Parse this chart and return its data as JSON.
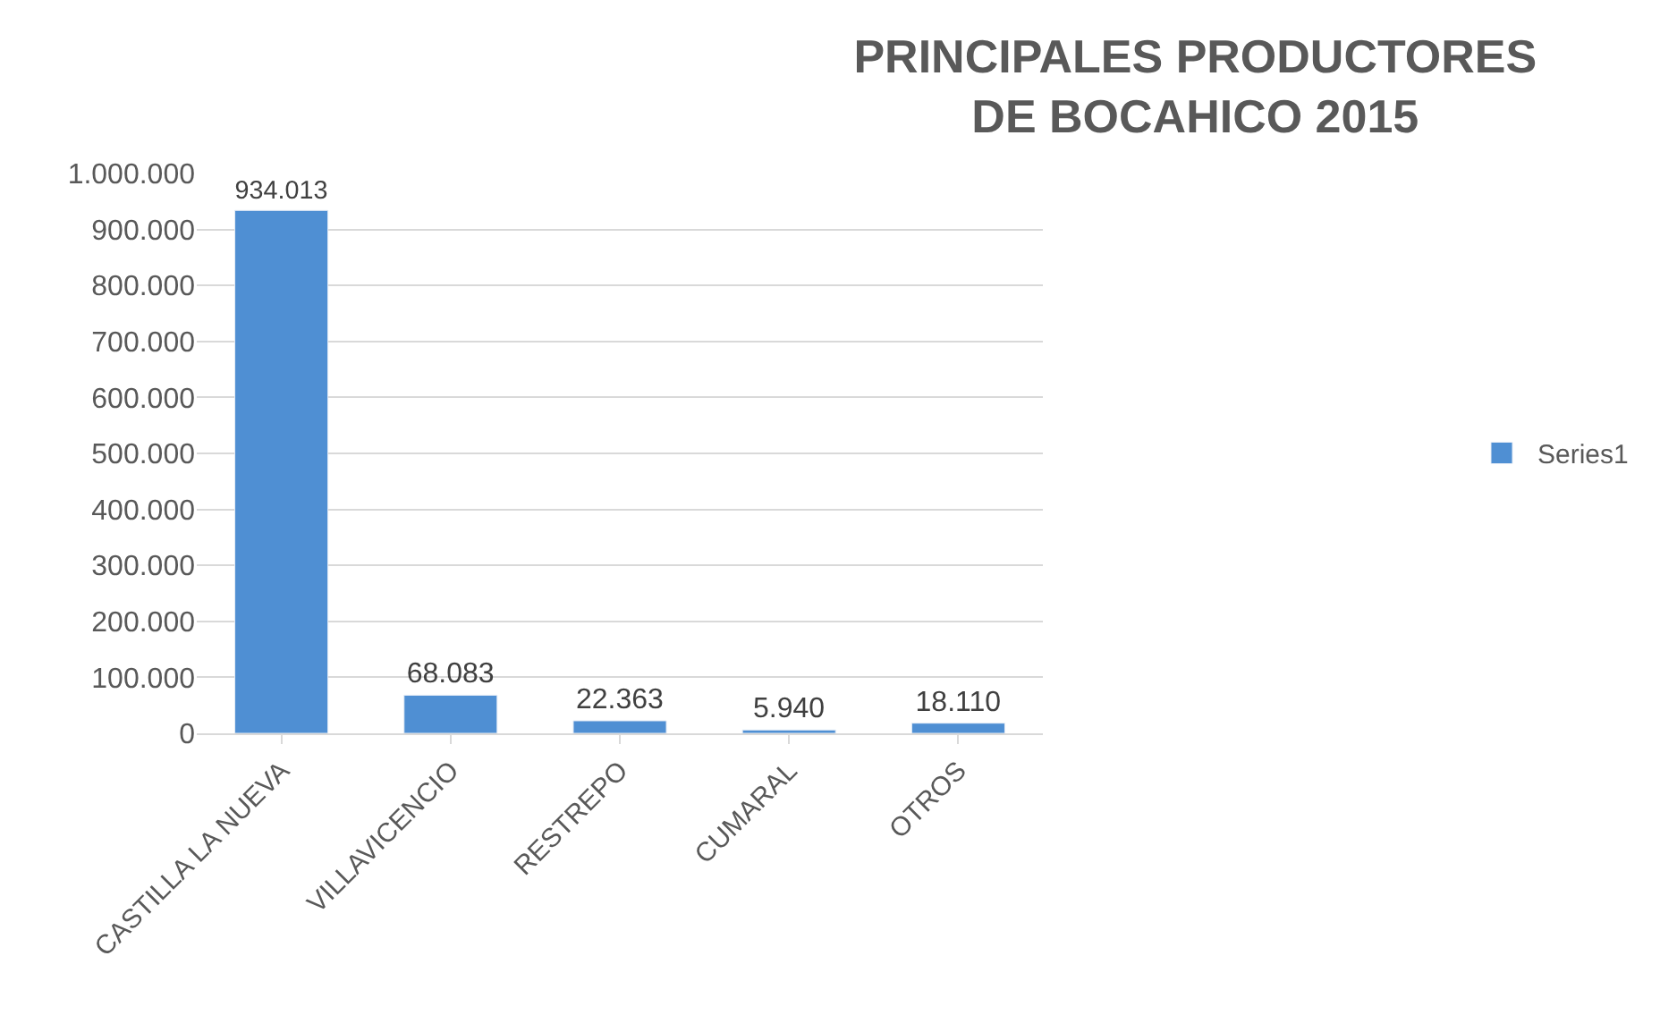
{
  "chart_data": {
    "type": "bar",
    "title": "PRINCIPALES PRODUCTORES\nDE BOCAHICO 2015",
    "categories": [
      "CASTILLA LA NUEVA",
      "VILLAVICENCIO",
      "RESTREPO",
      "CUMARAL",
      "OTROS"
    ],
    "series": [
      {
        "name": "Series1",
        "color": "#4f8fd3",
        "values": [
          934013,
          68083,
          22363,
          5940,
          18110
        ],
        "value_labels": [
          "934.013",
          "68.083",
          "22.363",
          "5.940",
          "18.110"
        ]
      }
    ],
    "ylim": [
      0,
      1000000
    ],
    "yticks": [
      {
        "value": 0,
        "label": "0"
      },
      {
        "value": 100000,
        "label": "100.000"
      },
      {
        "value": 200000,
        "label": "200.000"
      },
      {
        "value": 300000,
        "label": "300.000"
      },
      {
        "value": 400000,
        "label": "400.000"
      },
      {
        "value": 500000,
        "label": "500.000"
      },
      {
        "value": 600000,
        "label": "600.000"
      },
      {
        "value": 700000,
        "label": "700.000"
      },
      {
        "value": 800000,
        "label": "800.000"
      },
      {
        "value": 900000,
        "label": "900.000"
      },
      {
        "value": 1000000,
        "label": "1.000.000"
      }
    ],
    "grid": "y",
    "legend": "right"
  }
}
